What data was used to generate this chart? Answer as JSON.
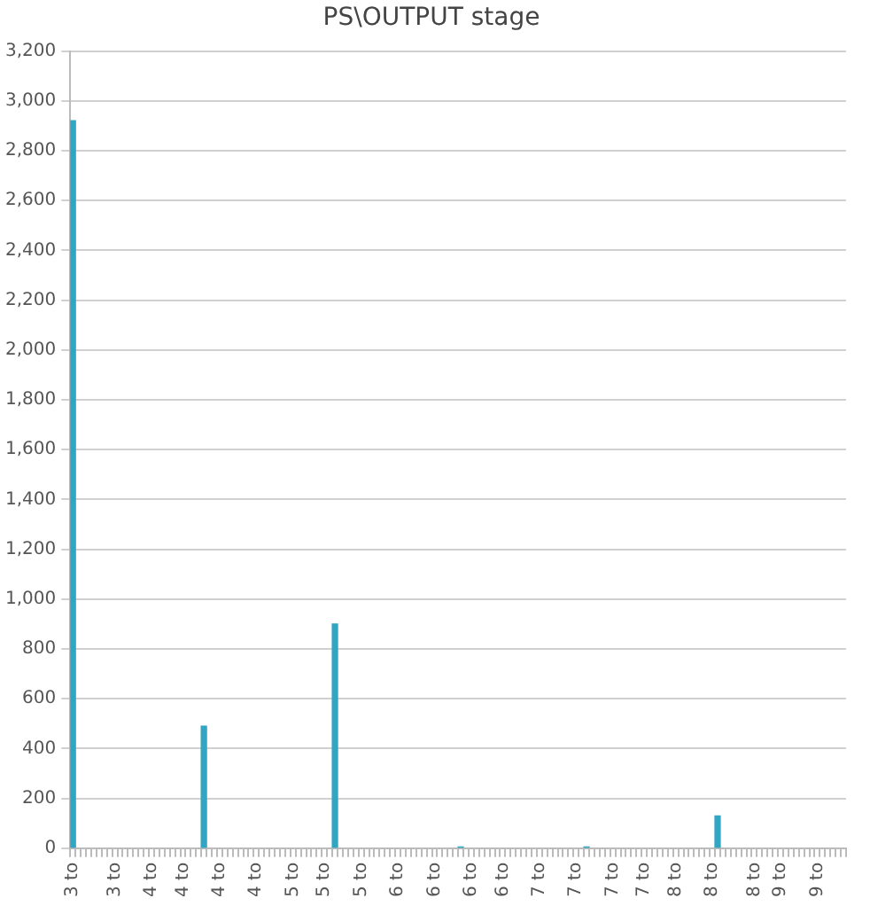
{
  "chart_data": {
    "type": "bar",
    "title": "PS\\OUTPUT stage",
    "color": "#31a5c1",
    "categories": [
      "3 to",
      null,
      null,
      null,
      null,
      null,
      null,
      null,
      "3 to",
      null,
      null,
      null,
      null,
      null,
      null,
      "4 to",
      null,
      null,
      null,
      null,
      null,
      "4 to",
      null,
      null,
      null,
      null,
      null,
      null,
      "4 to",
      null,
      null,
      null,
      null,
      null,
      null,
      "4 to",
      null,
      null,
      null,
      null,
      null,
      null,
      "5 to",
      null,
      null,
      null,
      null,
      null,
      "5 to",
      null,
      null,
      null,
      null,
      null,
      null,
      "5 to",
      null,
      null,
      null,
      null,
      null,
      null,
      "6 to",
      null,
      null,
      null,
      null,
      null,
      null,
      "6 to",
      null,
      null,
      null,
      null,
      null,
      null,
      "6 to",
      null,
      null,
      null,
      null,
      null,
      "6 to",
      null,
      null,
      null,
      null,
      null,
      null,
      "7 to",
      null,
      null,
      null,
      null,
      null,
      null,
      "7 to",
      null,
      null,
      null,
      null,
      null,
      null,
      "7 to",
      null,
      null,
      null,
      null,
      null,
      "7 to",
      null,
      null,
      null,
      null,
      null,
      "8 to",
      null,
      null,
      null,
      null,
      null,
      null,
      "8 to",
      null,
      null,
      null,
      null,
      null,
      null,
      null,
      "8 to",
      null,
      null,
      null,
      null,
      "9 to",
      null,
      null,
      null,
      null,
      null,
      null,
      "9 to",
      null,
      null,
      null,
      null,
      null
    ],
    "values": [
      2920,
      null,
      null,
      null,
      null,
      null,
      null,
      null,
      null,
      null,
      null,
      null,
      null,
      null,
      null,
      null,
      null,
      null,
      null,
      null,
      null,
      null,
      null,
      null,
      null,
      490,
      null,
      null,
      null,
      null,
      null,
      null,
      null,
      null,
      null,
      null,
      null,
      null,
      null,
      null,
      null,
      null,
      null,
      null,
      null,
      null,
      null,
      null,
      null,
      null,
      900,
      null,
      null,
      null,
      null,
      null,
      null,
      null,
      null,
      null,
      null,
      null,
      null,
      null,
      null,
      null,
      null,
      null,
      null,
      null,
      null,
      null,
      null,
      null,
      5,
      null,
      null,
      null,
      null,
      null,
      null,
      null,
      null,
      null,
      null,
      null,
      null,
      null,
      null,
      null,
      null,
      null,
      null,
      null,
      null,
      null,
      null,
      null,
      5,
      null,
      null,
      null,
      null,
      null,
      null,
      null,
      null,
      null,
      null,
      null,
      null,
      null,
      null,
      null,
      null,
      null,
      null,
      null,
      null,
      null,
      null,
      null,
      null,
      130,
      null,
      null,
      null,
      null,
      null,
      null,
      null,
      null,
      null,
      null,
      null,
      null,
      null,
      null,
      null,
      null,
      null,
      null,
      null,
      null,
      null,
      null,
      null,
      null
    ],
    "ylim": [
      0,
      3200
    ],
    "yticks": [
      0,
      200,
      400,
      600,
      800,
      {
        "value": 1000,
        "label": "1,000"
      },
      {
        "value": 1200,
        "label": "1,200"
      },
      {
        "value": 1400,
        "label": "1,400"
      },
      {
        "value": 1600,
        "label": "1,600"
      },
      {
        "value": 1800,
        "label": "1,800"
      },
      {
        "value": 2000,
        "label": "2,000"
      },
      {
        "value": 2200,
        "label": "2,200"
      },
      {
        "value": 2400,
        "label": "2,400"
      },
      {
        "value": 2600,
        "label": "2,600"
      },
      {
        "value": 2800,
        "label": "2,800"
      },
      {
        "value": 3000,
        "label": "3,000"
      },
      {
        "value": 3200,
        "label": "3,200"
      }
    ],
    "grid": "y",
    "legend": false
  }
}
